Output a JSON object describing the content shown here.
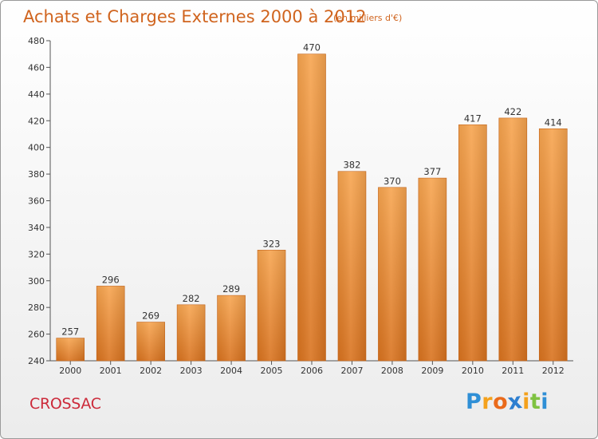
{
  "chart_data": {
    "type": "bar",
    "title": "Achats et Charges Externes 2000 à 2012",
    "subtitle": "(en milliers d'€)",
    "xlabel": "",
    "ylabel": "",
    "categories": [
      "2000",
      "2001",
      "2002",
      "2003",
      "2004",
      "2005",
      "2006",
      "2007",
      "2008",
      "2009",
      "2010",
      "2011",
      "2012"
    ],
    "values": [
      257,
      296,
      269,
      282,
      289,
      323,
      470,
      382,
      370,
      377,
      417,
      422,
      414
    ],
    "ylim": [
      240,
      480
    ],
    "yticks": [
      240,
      260,
      280,
      300,
      320,
      340,
      360,
      380,
      400,
      420,
      440,
      460,
      480
    ],
    "grid": false,
    "bar_color": "#f0923a"
  },
  "footer": {
    "commune": "CROSSAC",
    "logo_letters": [
      {
        "ch": "P",
        "color": "#2f8fd6"
      },
      {
        "ch": "r",
        "color": "#f4a11c"
      },
      {
        "ch": "o",
        "color": "#ea6a1b"
      },
      {
        "ch": "x",
        "color": "#2e7fd0"
      },
      {
        "ch": "i",
        "color": "#f4a11c"
      },
      {
        "ch": "t",
        "color": "#7fc241"
      },
      {
        "ch": "i",
        "color": "#2f8fd6"
      }
    ]
  }
}
